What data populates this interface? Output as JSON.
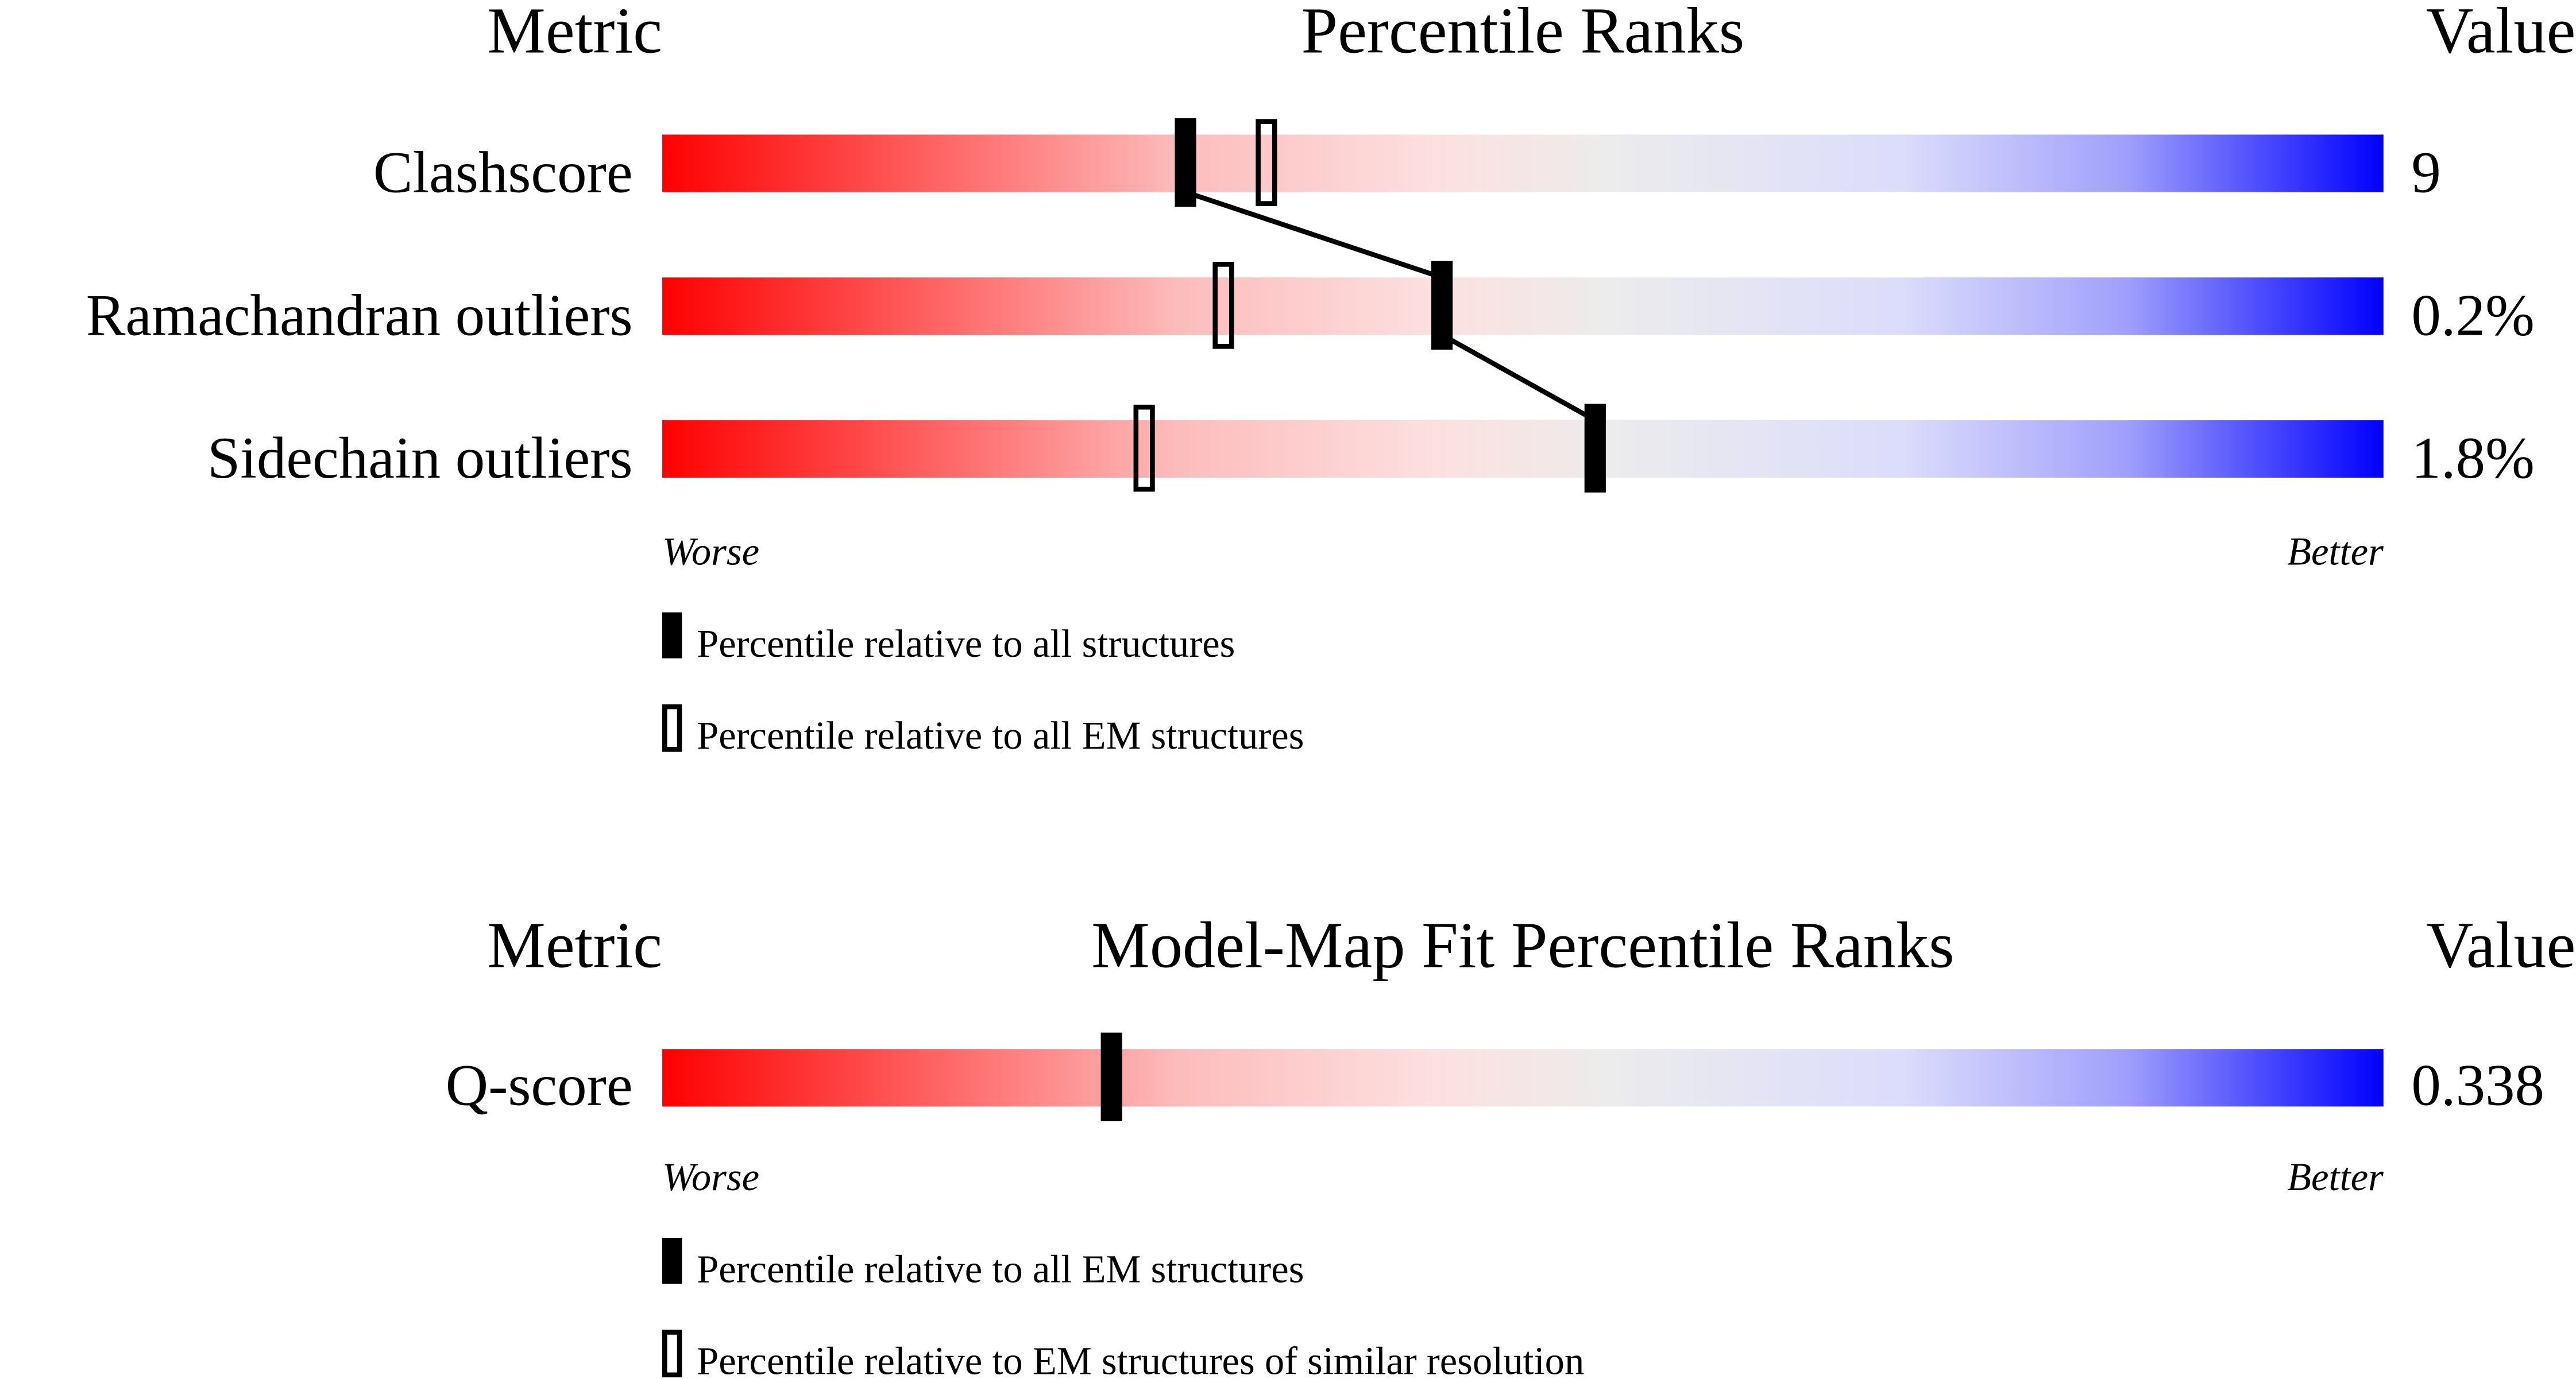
{
  "chart_data": [
    {
      "type": "bar",
      "header": {
        "metric": "Metric",
        "title": "Percentile Ranks",
        "value": "Value"
      },
      "axis": {
        "min_label": "Worse",
        "max_label": "Better",
        "range": [
          0,
          100
        ]
      },
      "gradient_colors": [
        "#ff0000",
        "#eeeeee",
        "#0000ff"
      ],
      "metrics": [
        {
          "name": "Clashscore",
          "value": "9",
          "percentile_all": 30.4,
          "percentile_em": 35.1
        },
        {
          "name": "Ramachandran outliers",
          "value": "0.2%",
          "percentile_all": 45.3,
          "percentile_em": 32.6
        },
        {
          "name": "Sidechain outliers",
          "value": "1.8%",
          "percentile_all": 54.2,
          "percentile_em": 28.0
        }
      ],
      "legend": [
        {
          "marker": "filled",
          "label": "Percentile relative to all structures"
        },
        {
          "marker": "open",
          "label": "Percentile relative to all EM structures"
        }
      ],
      "connect_filled_markers": true
    },
    {
      "type": "bar",
      "header": {
        "metric": "Metric",
        "title": "Model-Map Fit Percentile Ranks",
        "value": "Value"
      },
      "axis": {
        "min_label": "Worse",
        "max_label": "Better",
        "range": [
          0,
          100
        ]
      },
      "gradient_colors": [
        "#ff0000",
        "#eeeeee",
        "#0000ff"
      ],
      "metrics": [
        {
          "name": "Q-score",
          "value": "0.338",
          "percentile_all": 26.1
        }
      ],
      "legend": [
        {
          "marker": "filled",
          "label": "Percentile relative to all EM structures"
        },
        {
          "marker": "open",
          "label": "Percentile relative to EM structures of similar resolution"
        }
      ],
      "connect_filled_markers": false
    }
  ]
}
